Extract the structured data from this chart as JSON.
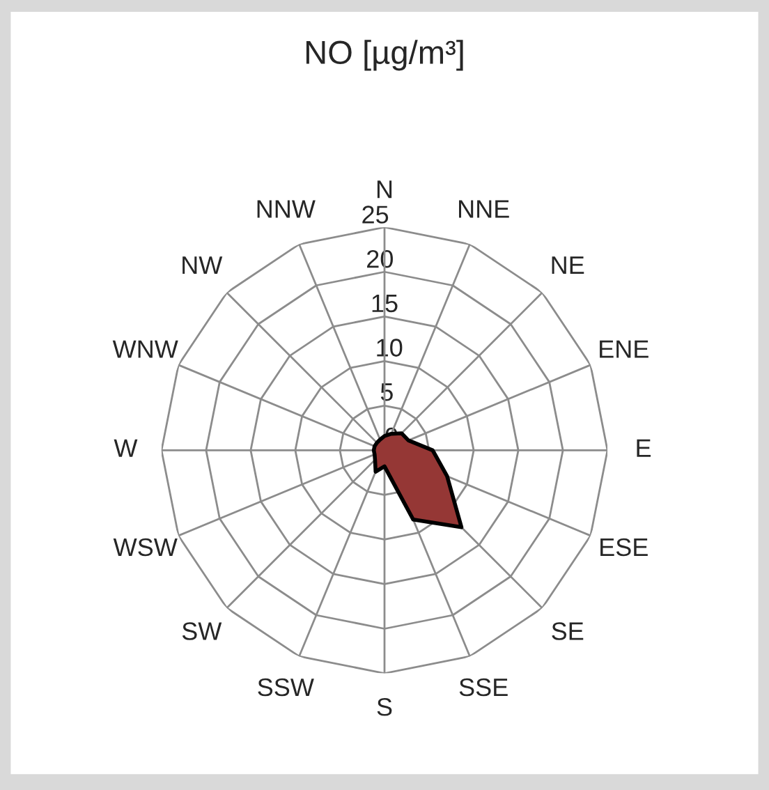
{
  "chart_data": {
    "type": "radar",
    "title": "NO [µg/m³]",
    "categories": [
      "N",
      "NNE",
      "NE",
      "ENE",
      "E",
      "ESE",
      "SE",
      "SSE",
      "S",
      "SSW",
      "SW",
      "WSW",
      "W",
      "WNW",
      "NW",
      "NNW"
    ],
    "series": [
      {
        "color": "#953735",
        "values": [
          1.6,
          2.0,
          2.7,
          2.9,
          5.4,
          7.6,
          12.2,
          8.4,
          1.8,
          2.6,
          1.5,
          1.2,
          1.2,
          1.2,
          1.2,
          1.3
        ]
      }
    ],
    "ylim": [
      0,
      25
    ],
    "yticks": [
      0,
      5,
      10,
      15,
      20,
      25
    ],
    "grid": true
  }
}
